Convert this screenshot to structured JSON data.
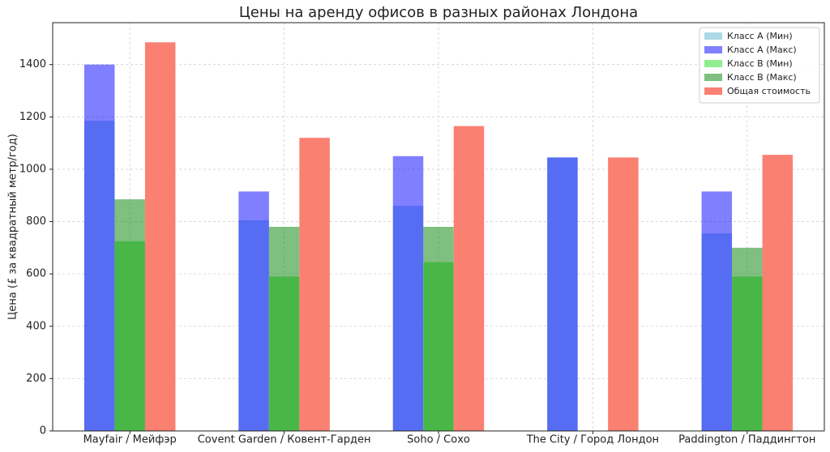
{
  "chart_data": {
    "type": "bar",
    "title": "Цены на аренду офисов в разных районах Лондона",
    "y_label": "Цена (£ за квадратный метр/год)",
    "categories": [
      "Mayfair / Мейфэр",
      "Covent Garden / Ковент-Гарден",
      "Soho / Сохо",
      "The City / Город Лондон",
      "Paddington / Паддингтон"
    ],
    "series": [
      {
        "name": "Класс A (Мин)",
        "color": "#add8e6",
        "alpha": 1,
        "values": [
          1185,
          805,
          860,
          1045,
          755
        ]
      },
      {
        "name": "Класс A (Макс)",
        "color": "#0000ff",
        "alpha": 0.5,
        "values": [
          1400,
          915,
          1050,
          1045,
          915
        ]
      },
      {
        "name": "Класс B (Мин)",
        "color": "#90ee90",
        "alpha": 1,
        "values": [
          725,
          590,
          645,
          null,
          590
        ]
      },
      {
        "name": "Класс B (Макс)",
        "color": "#008000",
        "alpha": 0.5,
        "values": [
          885,
          780,
          780,
          null,
          700
        ]
      },
      {
        "name": "Общая стоимость",
        "color": "#fa8072",
        "alpha": 1,
        "values": [
          1485,
          1120,
          1165,
          1045,
          1055
        ]
      }
    ],
    "ylim": [
      0,
      1560
    ],
    "yticks": [
      0,
      200,
      400,
      600,
      800,
      1000,
      1200,
      1400
    ],
    "grid": true,
    "legend": "upper right"
  }
}
